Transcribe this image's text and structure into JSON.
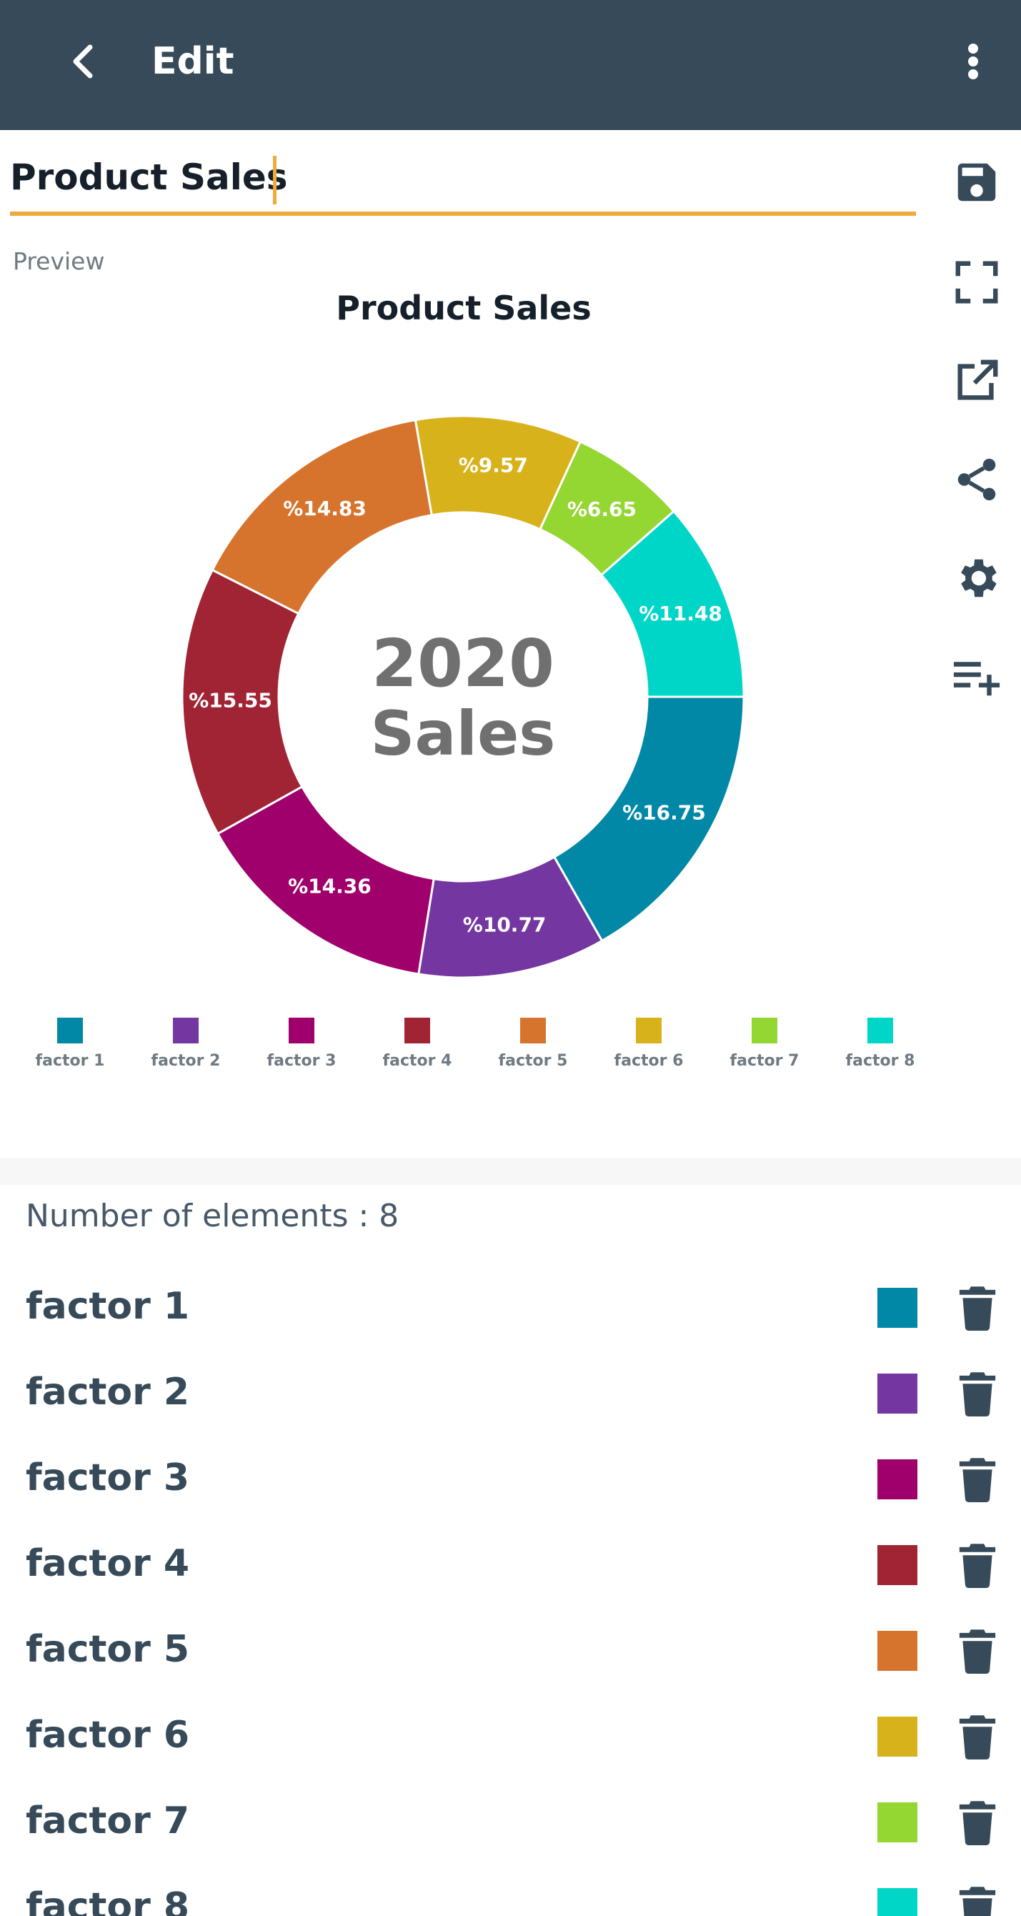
{
  "appbar": {
    "title": "Edit",
    "back_icon": "arrow-back-icon",
    "menu_icon": "more-vert-icon",
    "background": "#364a59"
  },
  "editor": {
    "name_value": "Product Sales",
    "underline_color": "#f0aa3c"
  },
  "tools": [
    {
      "name": "save-icon"
    },
    {
      "name": "fullscreen-icon"
    },
    {
      "name": "open-external-icon"
    },
    {
      "name": "share-icon"
    },
    {
      "name": "settings-gear-icon"
    },
    {
      "name": "add-list-icon"
    }
  ],
  "preview": {
    "label": "Preview"
  },
  "chart_data": {
    "type": "pie",
    "title": "Product Sales",
    "center_text": [
      "2020",
      "Sales"
    ],
    "legend_position": "bottom",
    "slices": [
      {
        "name": "factor 1",
        "value": 16.75,
        "label": "%16.75",
        "color": "#0088a6"
      },
      {
        "name": "factor 2",
        "value": 10.77,
        "label": "%10.77",
        "color": "#7436a0"
      },
      {
        "name": "factor 3",
        "value": 14.36,
        "label": "%14.36",
        "color": "#a0006c"
      },
      {
        "name": "factor 4",
        "value": 15.55,
        "label": "%15.55",
        "color": "#a02434"
      },
      {
        "name": "factor 5",
        "value": 14.83,
        "label": "%14.83",
        "color": "#d6742e"
      },
      {
        "name": "factor 6",
        "value": 9.57,
        "label": "%9.57",
        "color": "#d8b21a"
      },
      {
        "name": "factor 7",
        "value": 6.65,
        "label": "%6.65",
        "color": "#94d632"
      },
      {
        "name": "factor 8",
        "value": 11.48,
        "label": "%11.48",
        "color": "#00d6c8"
      }
    ]
  },
  "list": {
    "count_text": "Number of elements : 8",
    "delete_icon": "trash-icon"
  }
}
